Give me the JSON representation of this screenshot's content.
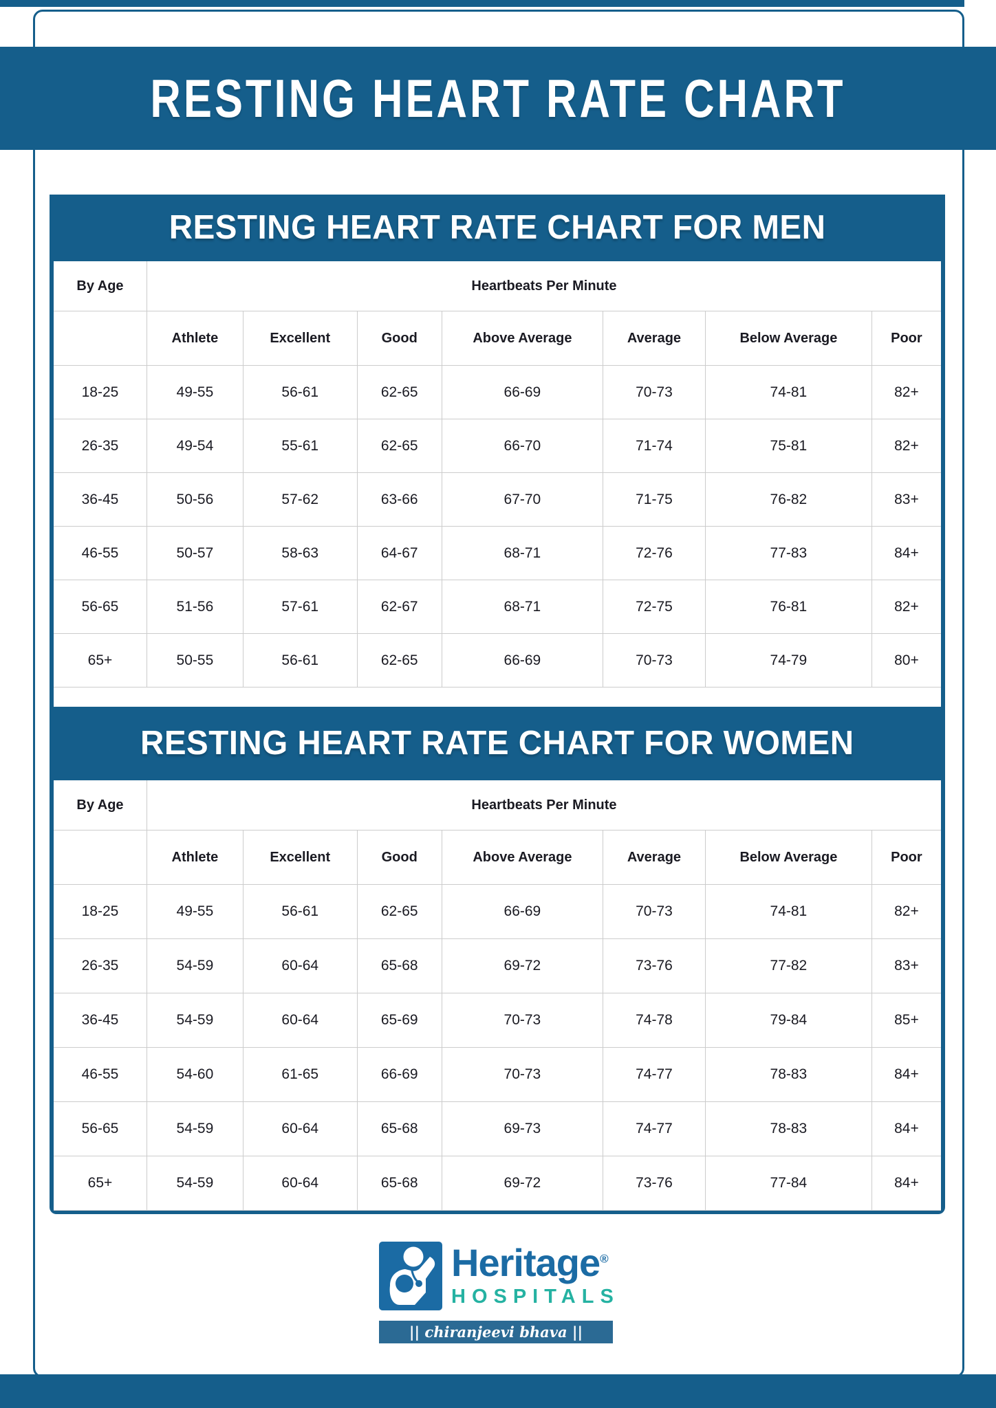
{
  "page": {
    "main_title": "RESTING HEART RATE CHART"
  },
  "chart_data": [
    {
      "type": "table",
      "title": "RESTING HEART RATE CHART FOR MEN",
      "corner_header": "By Age",
      "group_header": "Heartbeats Per Minute",
      "columns": [
        "Athlete",
        "Excellent",
        "Good",
        "Above Average",
        "Average",
        "Below Average",
        "Poor"
      ],
      "rows": [
        [
          "18-25",
          "49-55",
          "56-61",
          "62-65",
          "66-69",
          "70-73",
          "74-81",
          "82+"
        ],
        [
          "26-35",
          "49-54",
          "55-61",
          "62-65",
          "66-70",
          "71-74",
          "75-81",
          "82+"
        ],
        [
          "36-45",
          "50-56",
          "57-62",
          "63-66",
          "67-70",
          "71-75",
          "76-82",
          "83+"
        ],
        [
          "46-55",
          "50-57",
          "58-63",
          "64-67",
          "68-71",
          "72-76",
          "77-83",
          "84+"
        ],
        [
          "56-65",
          "51-56",
          "57-61",
          "62-67",
          "68-71",
          "72-75",
          "76-81",
          "82+"
        ],
        [
          "65+",
          "50-55",
          "56-61",
          "62-65",
          "66-69",
          "70-73",
          "74-79",
          "80+"
        ]
      ]
    },
    {
      "type": "table",
      "title": "RESTING HEART RATE CHART FOR WOMEN",
      "corner_header": "By Age",
      "group_header": "Heartbeats Per Minute",
      "columns": [
        "Athlete",
        "Excellent",
        "Good",
        "Above Average",
        "Average",
        "Below Average",
        "Poor"
      ],
      "rows": [
        [
          "18-25",
          "49-55",
          "56-61",
          "62-65",
          "66-69",
          "70-73",
          "74-81",
          "82+"
        ],
        [
          "26-35",
          "54-59",
          "60-64",
          "65-68",
          "69-72",
          "73-76",
          "77-82",
          "83+"
        ],
        [
          "36-45",
          "54-59",
          "60-64",
          "65-69",
          "70-73",
          "74-78",
          "79-84",
          "85+"
        ],
        [
          "46-55",
          "54-60",
          "61-65",
          "66-69",
          "70-73",
          "74-77",
          "78-83",
          "84+"
        ],
        [
          "56-65",
          "54-59",
          "60-64",
          "65-68",
          "69-73",
          "74-77",
          "78-83",
          "84+"
        ],
        [
          "65+",
          "54-59",
          "60-64",
          "65-68",
          "69-72",
          "73-76",
          "77-84",
          "84+"
        ]
      ]
    }
  ],
  "logo": {
    "brand": "Heritage",
    "registered_mark": "®",
    "subtitle": "HOSPITALS",
    "tagline": "|| chiranjeevi bhava ||"
  },
  "colors": {
    "blue": "#155e8b",
    "tagline_bar": "#2b6a94",
    "brand": "#1b6ba4",
    "teal": "#25b2a2",
    "grid": "#cccccc",
    "text": "#1a1a22"
  }
}
